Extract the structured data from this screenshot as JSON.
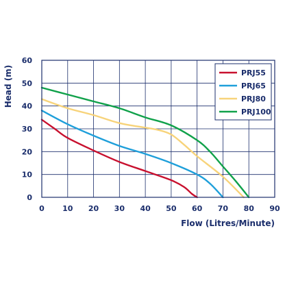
{
  "chart_data": {
    "type": "line",
    "xlabel": "Flow (Litres/Minute)",
    "ylabel": "Head (m)",
    "xlim": [
      0,
      90
    ],
    "ylim": [
      0,
      60
    ],
    "x_ticks": [
      0,
      10,
      20,
      30,
      40,
      50,
      60,
      70,
      80,
      90
    ],
    "y_ticks": [
      0,
      10,
      20,
      30,
      40,
      50,
      60
    ],
    "grid": true,
    "legend_position": "top-right",
    "colors": {
      "axis": "#1a2d6b",
      "grid": "#1a2d6b",
      "PRJ55": "#c8102e",
      "PRJ65": "#1e9fda",
      "PRJ80": "#f7d37a",
      "PRJ100": "#10a14a"
    },
    "series": [
      {
        "name": "PRJ55",
        "x": [
          0,
          5,
          10,
          20,
          30,
          40,
          50,
          55,
          58,
          60
        ],
        "y": [
          34,
          30,
          26,
          20.5,
          15.5,
          11.5,
          7.5,
          4.5,
          1.5,
          0
        ]
      },
      {
        "name": "PRJ65",
        "x": [
          0,
          10,
          20,
          30,
          40,
          50,
          60,
          65,
          70
        ],
        "y": [
          38,
          32,
          27,
          22.5,
          19,
          15,
          10,
          6,
          0
        ]
      },
      {
        "name": "PRJ80",
        "x": [
          0,
          10,
          20,
          30,
          40,
          45,
          50,
          55,
          60,
          70,
          78
        ],
        "y": [
          43,
          39,
          36,
          32.5,
          30.5,
          29.5,
          27.5,
          23,
          18,
          9,
          0
        ]
      },
      {
        "name": "PRJ100",
        "x": [
          0,
          10,
          20,
          30,
          40,
          50,
          60,
          65,
          70,
          75,
          80
        ],
        "y": [
          48,
          45,
          42,
          39,
          35,
          31.5,
          25,
          20,
          13.5,
          7,
          0
        ]
      }
    ]
  }
}
